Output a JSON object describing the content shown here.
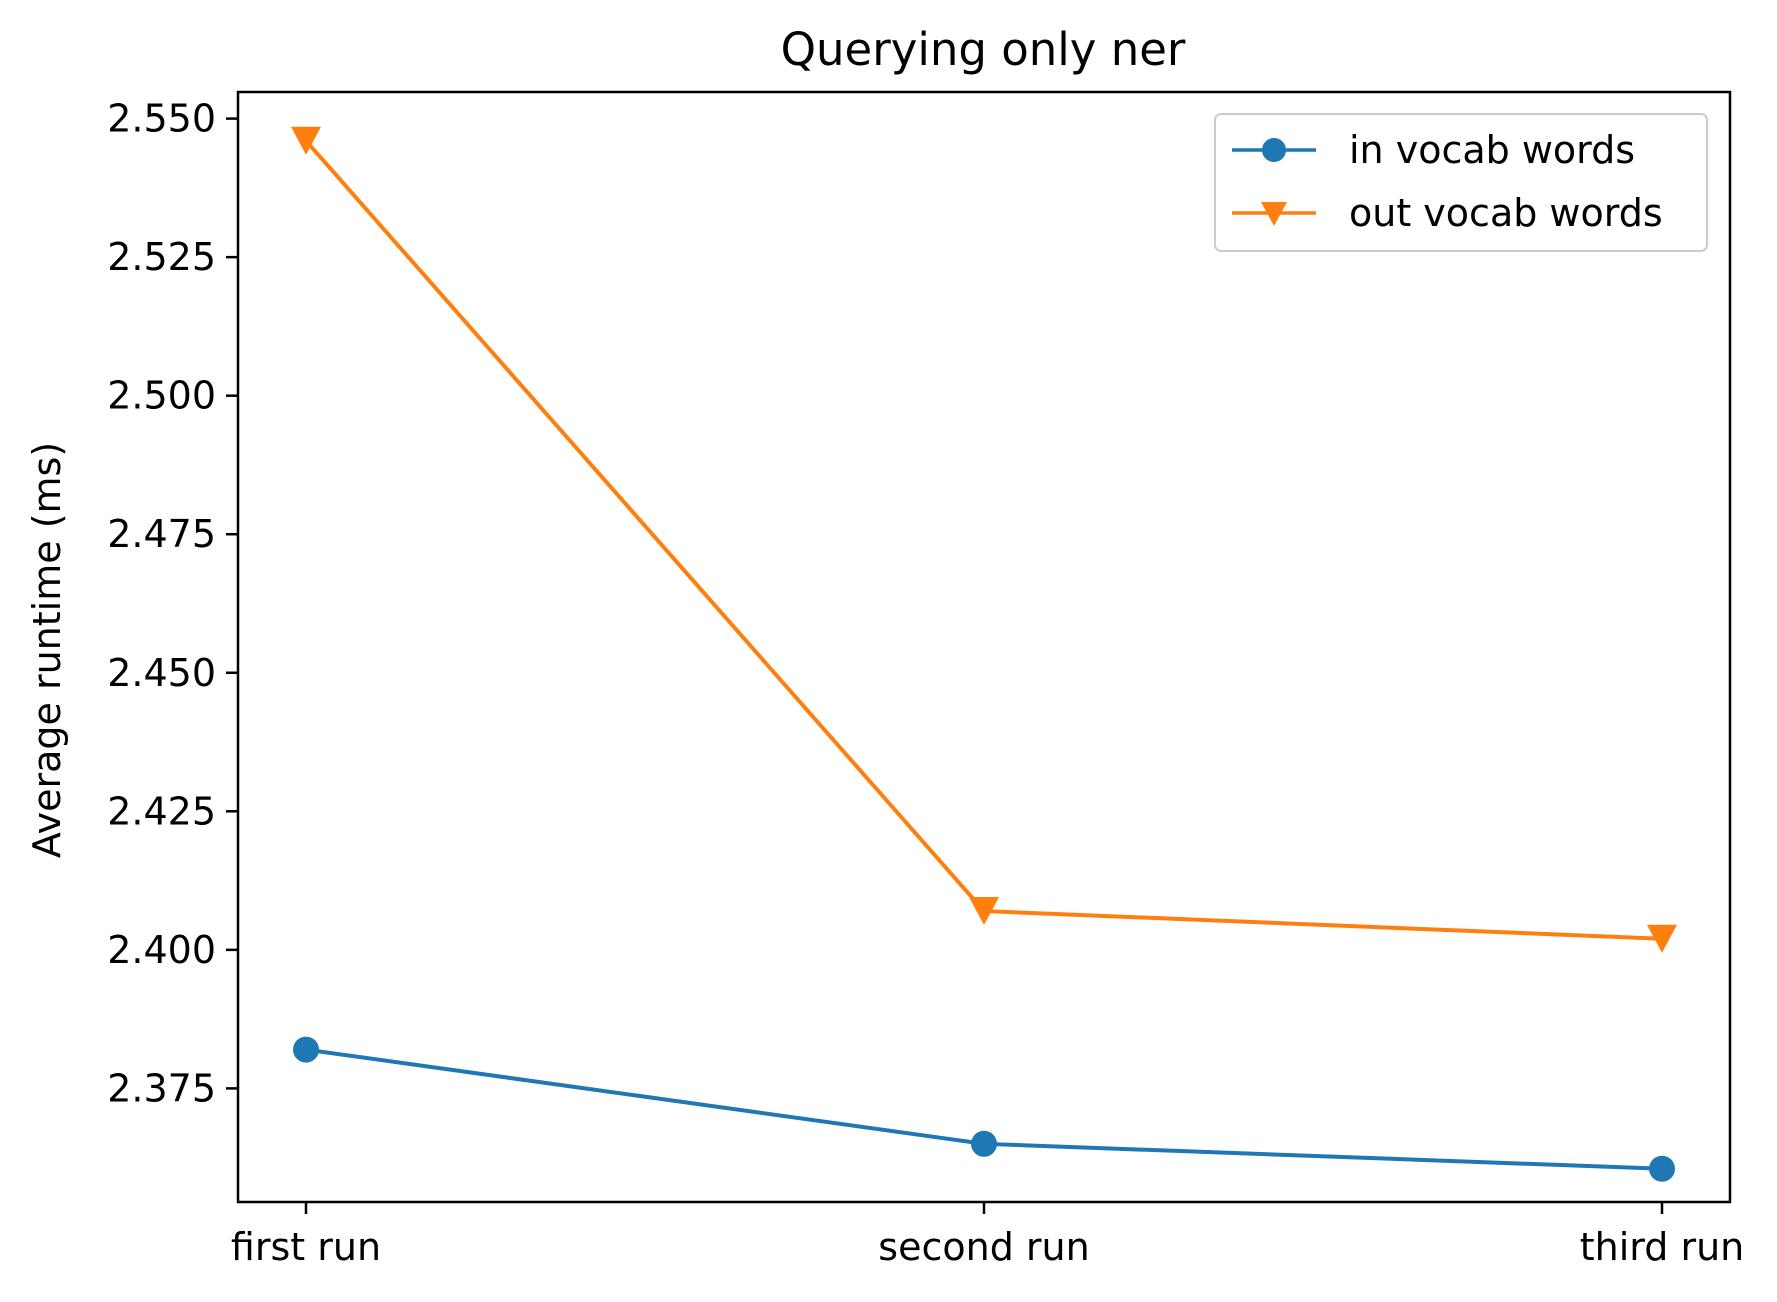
{
  "chart_data": {
    "type": "line",
    "title": "Querying only ner",
    "xlabel": "",
    "ylabel": "Average runtime (ms)",
    "categories": [
      "first run",
      "second run",
      "third run"
    ],
    "series": [
      {
        "name": "in vocab words",
        "values": [
          2.382,
          2.365,
          2.3605
        ],
        "color": "#1f77b4",
        "marker": "circle"
      },
      {
        "name": "out vocab words",
        "values": [
          2.546,
          2.407,
          2.402
        ],
        "color": "#ff7f0e",
        "marker": "triangle-down"
      }
    ],
    "yticks": [
      "2.375",
      "2.400",
      "2.425",
      "2.450",
      "2.475",
      "2.500",
      "2.525",
      "2.550"
    ],
    "ylim": [
      2.3545,
      2.5548
    ],
    "grid": false,
    "legend_position": "top-right"
  }
}
